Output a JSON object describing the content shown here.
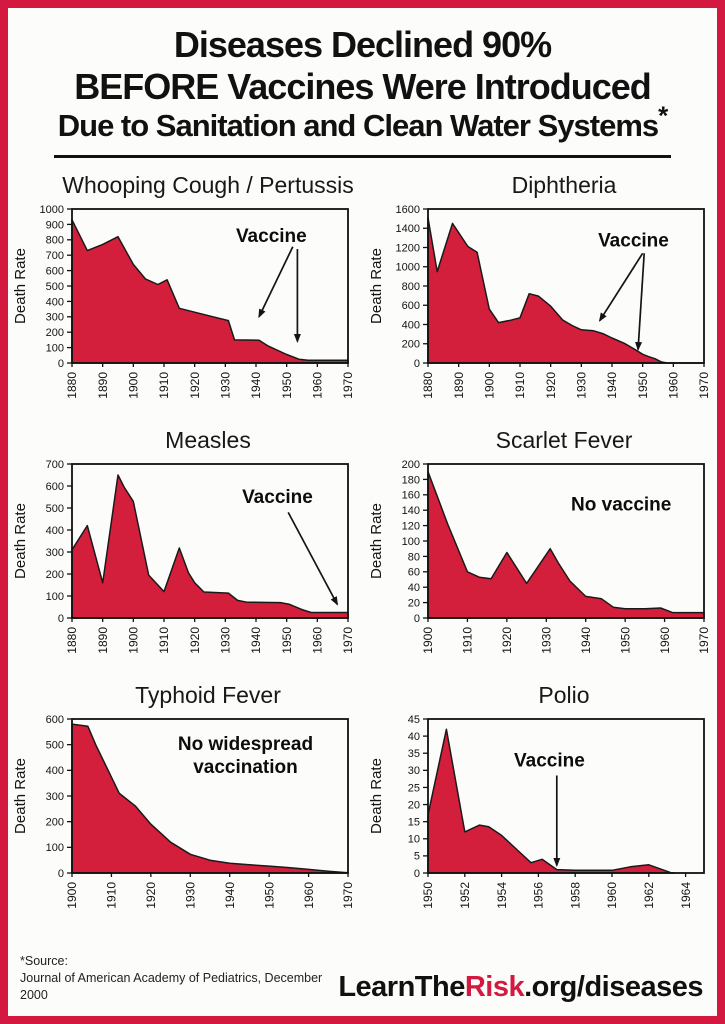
{
  "page": {
    "border_color": "#d41940",
    "background": "#fcfcfa",
    "title_lines": [
      "Diseases Declined 90%",
      "BEFORE Vaccines Were Introduced",
      "Due to Sanitation and Clean Water Systems"
    ],
    "title_asterisk": "*",
    "footer": {
      "source_label": "*Source:",
      "source_text": "Journal of American Academy of Pediatrics, December 2000",
      "brand_prefix": "LearnThe",
      "brand_accent": "Risk",
      "brand_suffix": ".org/diseases",
      "accent_color": "#d41940"
    }
  },
  "chart_data": [
    {
      "type": "area",
      "title": "Whooping Cough / Pertussis",
      "ylabel": "Death Rate",
      "ylim": [
        0,
        1000
      ],
      "yticks": [
        0,
        100,
        200,
        300,
        400,
        500,
        600,
        700,
        800,
        900,
        1000
      ],
      "xlim": [
        1880,
        1970
      ],
      "xticks": [
        1880,
        1890,
        1900,
        1910,
        1920,
        1930,
        1940,
        1950,
        1960,
        1970
      ],
      "fill_color": "#d41f3c",
      "points": [
        [
          1880,
          930
        ],
        [
          1885,
          730
        ],
        [
          1890,
          770
        ],
        [
          1895,
          820
        ],
        [
          1900,
          640
        ],
        [
          1904,
          545
        ],
        [
          1908,
          510
        ],
        [
          1911,
          540
        ],
        [
          1915,
          355
        ],
        [
          1920,
          330
        ],
        [
          1926,
          300
        ],
        [
          1931,
          275
        ],
        [
          1933,
          150
        ],
        [
          1941,
          148
        ],
        [
          1944,
          110
        ],
        [
          1950,
          55
        ],
        [
          1954,
          25
        ],
        [
          1957,
          18
        ],
        [
          1970,
          18
        ]
      ],
      "annotation": {
        "text_lines": [
          "Vaccine"
        ],
        "x": 1945,
        "y": 830
      },
      "arrows": [
        {
          "from": [
            1952,
            755
          ],
          "to": [
            1941,
            300
          ]
        },
        {
          "from": [
            1953.5,
            740
          ],
          "to": [
            1953.5,
            140
          ]
        }
      ]
    },
    {
      "type": "area",
      "title": "Diphtheria",
      "ylabel": "Death Rate",
      "ylim": [
        0,
        1600
      ],
      "yticks": [
        0,
        200,
        400,
        600,
        800,
        1000,
        1200,
        1400,
        1600
      ],
      "xlim": [
        1880,
        1970
      ],
      "xticks": [
        1880,
        1890,
        1900,
        1910,
        1920,
        1930,
        1940,
        1950,
        1960,
        1970
      ],
      "fill_color": "#d41f3c",
      "points": [
        [
          1880,
          1510
        ],
        [
          1883,
          950
        ],
        [
          1888,
          1450
        ],
        [
          1893,
          1210
        ],
        [
          1896,
          1150
        ],
        [
          1900,
          560
        ],
        [
          1903,
          420
        ],
        [
          1907,
          445
        ],
        [
          1910,
          470
        ],
        [
          1913,
          720
        ],
        [
          1916,
          695
        ],
        [
          1920,
          590
        ],
        [
          1924,
          445
        ],
        [
          1927,
          390
        ],
        [
          1930,
          345
        ],
        [
          1934,
          335
        ],
        [
          1937,
          305
        ],
        [
          1940,
          260
        ],
        [
          1944,
          205
        ],
        [
          1947,
          150
        ],
        [
          1950,
          90
        ],
        [
          1952,
          65
        ],
        [
          1954,
          45
        ],
        [
          1956,
          12
        ],
        [
          1958,
          0
        ],
        [
          1970,
          0
        ]
      ],
      "annotation": {
        "text_lines": [
          "Vaccine"
        ],
        "x": 1947,
        "y": 1280
      },
      "arrows": [
        {
          "from": [
            1950,
            1140
          ],
          "to": [
            1936,
            440
          ]
        },
        {
          "from": [
            1950.5,
            1140
          ],
          "to": [
            1948.5,
            140
          ]
        }
      ]
    },
    {
      "type": "area",
      "title": "Measles",
      "ylabel": "Death Rate",
      "ylim": [
        0,
        700
      ],
      "yticks": [
        0,
        100,
        200,
        300,
        400,
        500,
        600,
        700
      ],
      "xlim": [
        1880,
        1970
      ],
      "xticks": [
        1880,
        1890,
        1900,
        1910,
        1920,
        1930,
        1940,
        1950,
        1960,
        1970
      ],
      "fill_color": "#d41f3c",
      "points": [
        [
          1880,
          310
        ],
        [
          1885,
          420
        ],
        [
          1890,
          160
        ],
        [
          1895,
          650
        ],
        [
          1897,
          595
        ],
        [
          1900,
          530
        ],
        [
          1905,
          195
        ],
        [
          1910,
          120
        ],
        [
          1915,
          318
        ],
        [
          1918,
          205
        ],
        [
          1920,
          160
        ],
        [
          1923,
          118
        ],
        [
          1931,
          113
        ],
        [
          1934,
          80
        ],
        [
          1937,
          72
        ],
        [
          1948,
          70
        ],
        [
          1951,
          62
        ],
        [
          1955,
          38
        ],
        [
          1958,
          25
        ],
        [
          1970,
          25
        ]
      ],
      "annotation": {
        "text_lines": [
          "Vaccine"
        ],
        "x": 1947,
        "y": 553
      },
      "arrows": [
        {
          "from": [
            1950.5,
            480
          ],
          "to": [
            1966.5,
            62
          ]
        }
      ]
    },
    {
      "type": "area",
      "title": "Scarlet Fever",
      "ylabel": "Death Rate",
      "ylim": [
        0,
        200
      ],
      "yticks": [
        0,
        20,
        40,
        60,
        80,
        100,
        120,
        140,
        160,
        180,
        200
      ],
      "xlim": [
        1900,
        1970
      ],
      "xticks": [
        1900,
        1910,
        1920,
        1930,
        1940,
        1950,
        1960,
        1970
      ],
      "fill_color": "#d41f3c",
      "points": [
        [
          1900,
          190
        ],
        [
          1905,
          122
        ],
        [
          1910,
          60
        ],
        [
          1913,
          53
        ],
        [
          1916,
          51
        ],
        [
          1920,
          85
        ],
        [
          1925,
          45
        ],
        [
          1931,
          90
        ],
        [
          1933,
          72
        ],
        [
          1936,
          48
        ],
        [
          1940,
          28
        ],
        [
          1944,
          25
        ],
        [
          1947,
          14
        ],
        [
          1950,
          12
        ],
        [
          1955,
          12
        ],
        [
          1959,
          13
        ],
        [
          1962,
          7
        ],
        [
          1970,
          7
        ]
      ],
      "annotation": {
        "text_lines": [
          "No vaccine"
        ],
        "x": 1949,
        "y": 148
      },
      "arrows": []
    },
    {
      "type": "area",
      "title": "Typhoid Fever",
      "ylabel": "Death Rate",
      "ylim": [
        0,
        600
      ],
      "yticks": [
        0,
        100,
        200,
        300,
        400,
        500,
        600
      ],
      "xlim": [
        1900,
        1970
      ],
      "xticks": [
        1900,
        1910,
        1920,
        1930,
        1940,
        1950,
        1960,
        1970
      ],
      "fill_color": "#d41f3c",
      "points": [
        [
          1900,
          580
        ],
        [
          1904,
          572
        ],
        [
          1906,
          500
        ],
        [
          1912,
          310
        ],
        [
          1916,
          262
        ],
        [
          1920,
          190
        ],
        [
          1925,
          120
        ],
        [
          1930,
          73
        ],
        [
          1935,
          50
        ],
        [
          1940,
          38
        ],
        [
          1945,
          32
        ],
        [
          1950,
          27
        ],
        [
          1955,
          21
        ],
        [
          1960,
          14
        ],
        [
          1965,
          7
        ],
        [
          1970,
          1
        ]
      ],
      "annotation": {
        "text_lines": [
          "No widespread",
          "vaccination"
        ],
        "x": 1944,
        "y": 505
      },
      "arrows": []
    },
    {
      "type": "area",
      "title": "Polio",
      "ylabel": "Death Rate",
      "ylim": [
        0,
        45
      ],
      "yticks": [
        0,
        5,
        10,
        15,
        20,
        25,
        30,
        35,
        40,
        45
      ],
      "xlim": [
        1950,
        1965
      ],
      "xticks": [
        1950,
        1952,
        1954,
        1956,
        1958,
        1960,
        1962,
        1964
      ],
      "fill_color": "#d41f3c",
      "points": [
        [
          1950,
          17
        ],
        [
          1951,
          42
        ],
        [
          1952,
          12
        ],
        [
          1952.8,
          14
        ],
        [
          1953.3,
          13.5
        ],
        [
          1954,
          11
        ],
        [
          1955,
          6
        ],
        [
          1955.6,
          3
        ],
        [
          1956.2,
          4
        ],
        [
          1957,
          1
        ],
        [
          1958,
          0.8
        ],
        [
          1960,
          0.8
        ],
        [
          1961,
          1.8
        ],
        [
          1962,
          2.4
        ],
        [
          1963.2,
          0.1
        ],
        [
          1963.4,
          0
        ]
      ],
      "annotation": {
        "text_lines": [
          "Vaccine"
        ],
        "x": 1956.6,
        "y": 33
      },
      "arrows": [
        {
          "from": [
            1957,
            28.5
          ],
          "to": [
            1957,
            2.2
          ]
        }
      ]
    }
  ]
}
